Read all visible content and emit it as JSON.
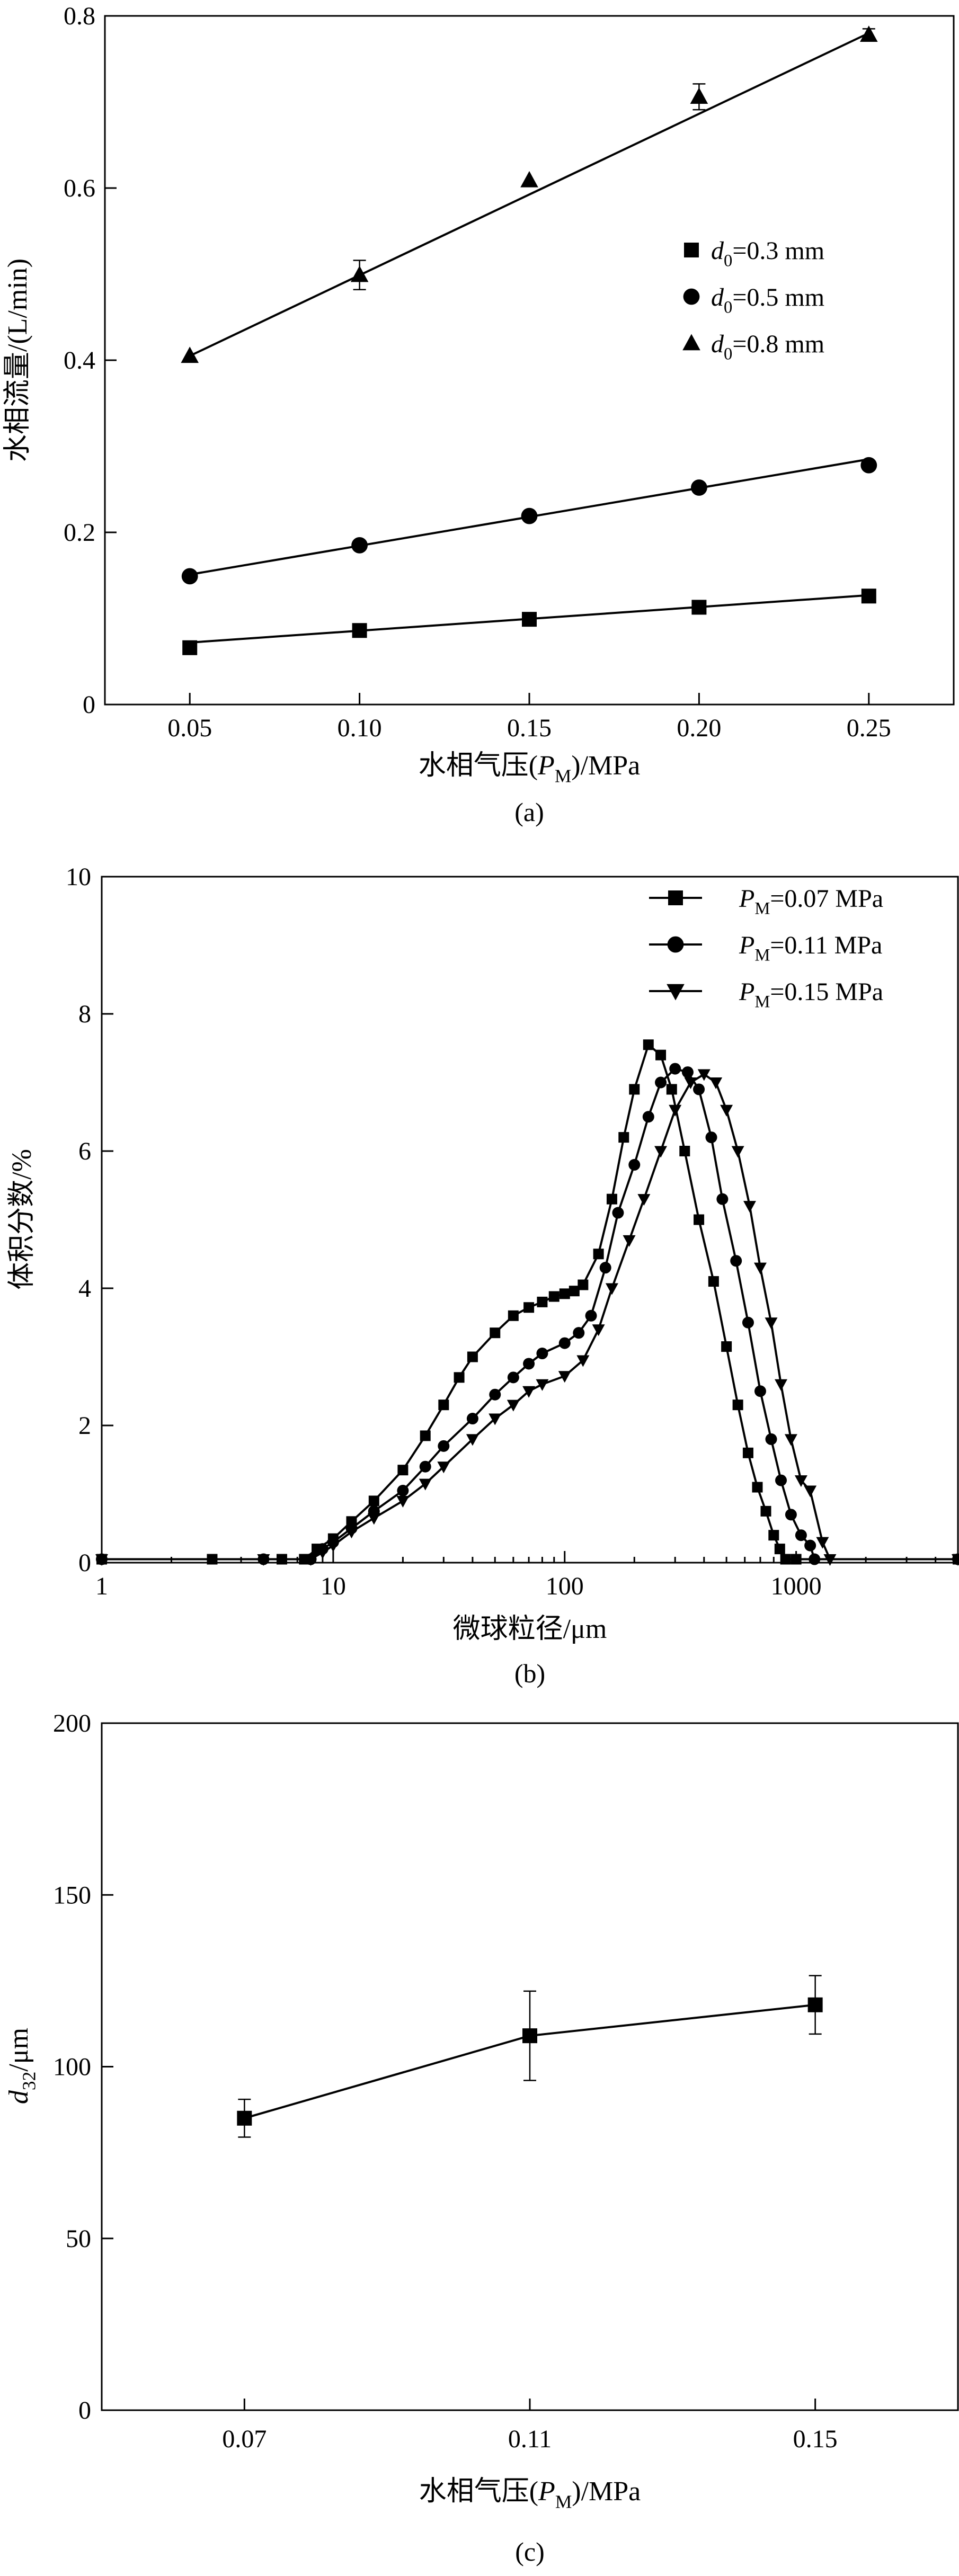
{
  "chart_data": [
    {
      "type": "scatter",
      "panel_label": "(a)",
      "xlabel": {
        "pre": "水相气压(",
        "var": "P",
        "sub": "M",
        "post": ")/MPa"
      },
      "ylabel": "水相流量/(L/min)",
      "xlim": [
        0.025,
        0.275
      ],
      "ylim": [
        0,
        0.8
      ],
      "xticks": [
        0.05,
        0.1,
        0.15,
        0.2,
        0.25
      ],
      "xtick_labels": [
        "0.05",
        "0.10",
        "0.15",
        "0.20",
        "0.25"
      ],
      "yticks": [
        0,
        0.2,
        0.4,
        0.6,
        0.8
      ],
      "ytick_labels": [
        "0",
        "0.2",
        "0.4",
        "0.6",
        "0.8"
      ],
      "legend_position": "center-right",
      "x": [
        0.05,
        0.1,
        0.15,
        0.2,
        0.25
      ],
      "series": [
        {
          "name": "d0=0.3 mm",
          "label_var": "d",
          "label_sub": "0",
          "label_rest": "=0.3 mm",
          "marker": "square",
          "values": [
            0.066,
            0.086,
            0.099,
            0.113,
            0.126
          ],
          "fit": [
            0.072,
            0.127
          ]
        },
        {
          "name": "d0=0.5 mm",
          "label_var": "d",
          "label_sub": "0",
          "label_rest": "=0.5 mm",
          "marker": "circle",
          "values": [
            0.149,
            0.185,
            0.219,
            0.252,
            0.278
          ],
          "fit": [
            0.151,
            0.285
          ]
        },
        {
          "name": "d0=0.8 mm",
          "label_var": "d",
          "label_sub": "0",
          "label_rest": "=0.8 mm",
          "marker": "triangle",
          "values": [
            0.405,
            0.499,
            0.609,
            0.706,
            0.778
          ],
          "errors": [
            0,
            0.017,
            0,
            0.015,
            0.007
          ],
          "fit": [
            0.405,
            0.78
          ]
        }
      ]
    },
    {
      "type": "line",
      "panel_label": "(b)",
      "xlabel": "微球粒径/μm",
      "ylabel": "体积分数/%",
      "xscale": "log",
      "xlim": [
        1,
        5000
      ],
      "ylim": [
        0,
        10
      ],
      "xticks": [
        1,
        10,
        100,
        1000
      ],
      "xtick_labels": [
        "1",
        "10",
        "100",
        "1000"
      ],
      "yticks": [
        0,
        2,
        4,
        6,
        8,
        10
      ],
      "ytick_labels": [
        "0",
        "2",
        "4",
        "6",
        "8",
        "10"
      ],
      "legend_position": "top-right",
      "series": [
        {
          "name": "PM=0.07 MPa",
          "label_var": "P",
          "label_sub": "M",
          "label_rest": "=0.07 MPa",
          "marker": "square",
          "points": [
            [
              1,
              0.05
            ],
            [
              3,
              0.05
            ],
            [
              6,
              0.05
            ],
            [
              7.5,
              0.05
            ],
            [
              8.5,
              0.2
            ],
            [
              10,
              0.35
            ],
            [
              12,
              0.6
            ],
            [
              15,
              0.9
            ],
            [
              20,
              1.35
            ],
            [
              25,
              1.85
            ],
            [
              30,
              2.3
            ],
            [
              35,
              2.7
            ],
            [
              40,
              3.0
            ],
            [
              50,
              3.35
            ],
            [
              60,
              3.6
            ],
            [
              70,
              3.72
            ],
            [
              80,
              3.8
            ],
            [
              90,
              3.88
            ],
            [
              100,
              3.92
            ],
            [
              110,
              3.96
            ],
            [
              120,
              4.05
            ],
            [
              140,
              4.5
            ],
            [
              160,
              5.3
            ],
            [
              180,
              6.2
            ],
            [
              200,
              6.9
            ],
            [
              230,
              7.55
            ],
            [
              260,
              7.4
            ],
            [
              290,
              6.9
            ],
            [
              330,
              6.0
            ],
            [
              380,
              5.0
            ],
            [
              440,
              4.1
            ],
            [
              500,
              3.15
            ],
            [
              560,
              2.3
            ],
            [
              620,
              1.6
            ],
            [
              680,
              1.1
            ],
            [
              740,
              0.75
            ],
            [
              800,
              0.4
            ],
            [
              850,
              0.2
            ],
            [
              900,
              0.05
            ],
            [
              1000,
              0.05
            ],
            [
              5000,
              0.05
            ]
          ]
        },
        {
          "name": "PM=0.11 MPa",
          "label_var": "P",
          "label_sub": "M",
          "label_rest": "=0.11 MPa",
          "marker": "circle",
          "points": [
            [
              1,
              0.05
            ],
            [
              5,
              0.05
            ],
            [
              8,
              0.05
            ],
            [
              9,
              0.2
            ],
            [
              10,
              0.3
            ],
            [
              12,
              0.5
            ],
            [
              15,
              0.75
            ],
            [
              20,
              1.05
            ],
            [
              25,
              1.4
            ],
            [
              30,
              1.7
            ],
            [
              40,
              2.1
            ],
            [
              50,
              2.45
            ],
            [
              60,
              2.7
            ],
            [
              70,
              2.9
            ],
            [
              80,
              3.05
            ],
            [
              100,
              3.2
            ],
            [
              115,
              3.35
            ],
            [
              130,
              3.6
            ],
            [
              150,
              4.3
            ],
            [
              170,
              5.1
            ],
            [
              200,
              5.8
            ],
            [
              230,
              6.5
            ],
            [
              260,
              7.0
            ],
            [
              300,
              7.2
            ],
            [
              340,
              7.15
            ],
            [
              380,
              6.9
            ],
            [
              430,
              6.2
            ],
            [
              480,
              5.3
            ],
            [
              550,
              4.4
            ],
            [
              620,
              3.5
            ],
            [
              700,
              2.5
            ],
            [
              780,
              1.8
            ],
            [
              860,
              1.2
            ],
            [
              950,
              0.7
            ],
            [
              1050,
              0.4
            ],
            [
              1150,
              0.25
            ],
            [
              1200,
              0.05
            ],
            [
              5000,
              0.05
            ]
          ]
        },
        {
          "name": "PM=0.15 MPa",
          "label_var": "P",
          "label_sub": "M",
          "label_rest": "=0.15 MPa",
          "marker": "triangle-down",
          "points": [
            [
              1,
              0.05
            ],
            [
              5,
              0.05
            ],
            [
              8,
              0.05
            ],
            [
              9,
              0.15
            ],
            [
              10,
              0.25
            ],
            [
              12,
              0.45
            ],
            [
              15,
              0.65
            ],
            [
              20,
              0.9
            ],
            [
              25,
              1.15
            ],
            [
              30,
              1.4
            ],
            [
              40,
              1.8
            ],
            [
              50,
              2.1
            ],
            [
              60,
              2.3
            ],
            [
              70,
              2.5
            ],
            [
              80,
              2.6
            ],
            [
              100,
              2.72
            ],
            [
              120,
              2.95
            ],
            [
              140,
              3.4
            ],
            [
              160,
              4.0
            ],
            [
              190,
              4.7
            ],
            [
              220,
              5.3
            ],
            [
              260,
              6.0
            ],
            [
              300,
              6.6
            ],
            [
              350,
              7.0
            ],
            [
              400,
              7.12
            ],
            [
              450,
              7.0
            ],
            [
              500,
              6.6
            ],
            [
              560,
              6.0
            ],
            [
              630,
              5.2
            ],
            [
              700,
              4.3
            ],
            [
              780,
              3.5
            ],
            [
              860,
              2.6
            ],
            [
              950,
              1.8
            ],
            [
              1050,
              1.2
            ],
            [
              1150,
              1.05
            ],
            [
              1300,
              0.3
            ],
            [
              1400,
              0.05
            ],
            [
              5000,
              0.05
            ]
          ]
        }
      ]
    },
    {
      "type": "line",
      "panel_label": "(c)",
      "xlabel": {
        "pre": "水相气压(",
        "var": "P",
        "sub": "M",
        "post": ")/MPa"
      },
      "ylabel": {
        "var": "d",
        "sub": "32",
        "post": "/μm"
      },
      "xlim": [
        0.05,
        0.17
      ],
      "ylim": [
        0,
        200
      ],
      "xticks": [
        0.07,
        0.11,
        0.15
      ],
      "xtick_labels": [
        "0.07",
        "0.11",
        "0.15"
      ],
      "yticks": [
        0,
        50,
        100,
        150,
        200
      ],
      "ytick_labels": [
        "0",
        "50",
        "100",
        "150",
        "200"
      ],
      "series": [
        {
          "marker": "square",
          "x": [
            0.07,
            0.11,
            0.15
          ],
          "values": [
            85,
            109,
            118
          ],
          "errors": [
            5.5,
            13,
            8.5
          ]
        }
      ]
    }
  ]
}
